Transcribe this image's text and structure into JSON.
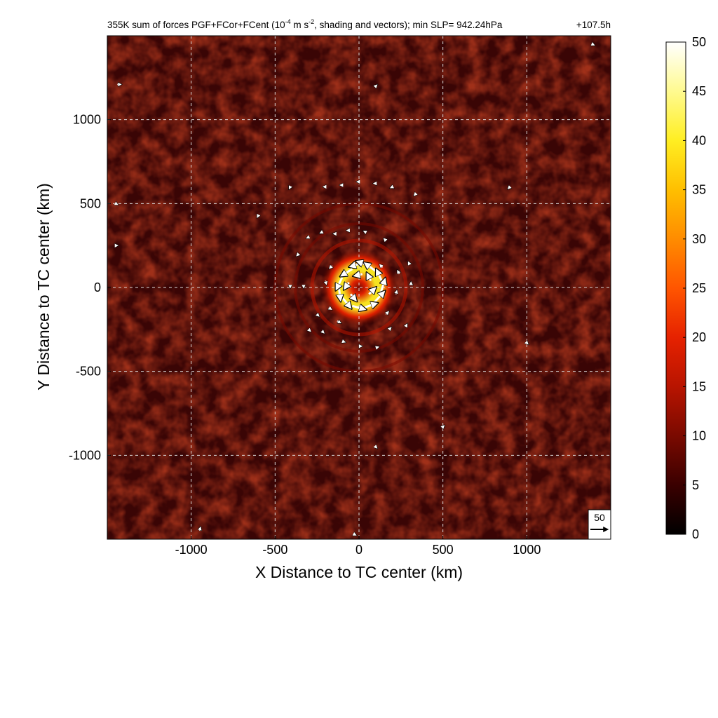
{
  "chart_data": {
    "type": "heatmap",
    "title_parts": {
      "prefix": "355K sum of forces PGF+FCor+FCent (10",
      "exp1": "-4",
      "mid": " m s",
      "exp2": "-2",
      "suffix": ", shading and vectors); min SLP= 942.24hPa",
      "time": "+107.5h"
    },
    "xlabel": "X Distance to TC center (km)",
    "ylabel": "Y Distance to TC center (km)",
    "xlim": [
      -1500,
      1500
    ],
    "ylim": [
      -1500,
      1500
    ],
    "xticks": [
      -1000,
      -500,
      0,
      500,
      1000
    ],
    "yticks": [
      -1000,
      -500,
      0,
      500,
      1000
    ],
    "grid": true,
    "colorbar": {
      "min": 0,
      "max": 50,
      "ticks": [
        0,
        5,
        10,
        15,
        20,
        25,
        30,
        35,
        40,
        45,
        50
      ],
      "colormap": [
        "#000000",
        "#3a0000",
        "#7a0a00",
        "#b81400",
        "#e62200",
        "#ff5500",
        "#ff8c00",
        "#ffbf00",
        "#ffee22",
        "#fffa90",
        "#ffffff"
      ],
      "placement": "right"
    },
    "field": {
      "description_units": "10^-4 m s^-2",
      "max_ring_radius_km": 90,
      "max_ring_value": 40,
      "outer_bands_km": [
        180,
        280,
        380,
        500
      ],
      "background_value": 6
    },
    "reference_vector": {
      "label": "50",
      "value": 50
    },
    "vectors": [
      {
        "x": 0,
        "y": 140,
        "u": -20,
        "v": -6
      },
      {
        "x": 60,
        "y": 130,
        "u": -28,
        "v": 10
      },
      {
        "x": 110,
        "y": 90,
        "u": -30,
        "v": 22
      },
      {
        "x": 140,
        "y": 30,
        "u": -14,
        "v": 30
      },
      {
        "x": 130,
        "y": -30,
        "u": 10,
        "v": 32
      },
      {
        "x": 90,
        "y": -90,
        "u": 24,
        "v": 26
      },
      {
        "x": 30,
        "y": -120,
        "u": 30,
        "v": 10
      },
      {
        "x": -40,
        "y": -110,
        "u": 30,
        "v": -8
      },
      {
        "x": -100,
        "y": -60,
        "u": 20,
        "v": -24
      },
      {
        "x": -120,
        "y": 0,
        "u": 4,
        "v": -30
      },
      {
        "x": -100,
        "y": 60,
        "u": -14,
        "v": -28
      },
      {
        "x": -40,
        "y": 110,
        "u": -26,
        "v": -16
      },
      {
        "x": 20,
        "y": 80,
        "u": -18,
        "v": -4
      },
      {
        "x": 70,
        "y": 40,
        "u": -8,
        "v": 16
      },
      {
        "x": 60,
        "y": -40,
        "u": 14,
        "v": 14
      },
      {
        "x": -50,
        "y": -40,
        "u": 12,
        "v": -14
      },
      {
        "x": -60,
        "y": 30,
        "u": -10,
        "v": -14
      },
      {
        "x": 140,
        "y": 120,
        "u": -6,
        "v": 6
      },
      {
        "x": -160,
        "y": 130,
        "u": -6,
        "v": -6
      },
      {
        "x": -200,
        "y": 40,
        "u": 2,
        "v": -8
      },
      {
        "x": -180,
        "y": -120,
        "u": 6,
        "v": -4
      },
      {
        "x": -130,
        "y": -200,
        "u": 8,
        "v": -4
      },
      {
        "x": 160,
        "y": -160,
        "u": 6,
        "v": 6
      },
      {
        "x": 220,
        "y": -40,
        "u": 2,
        "v": 8
      },
      {
        "x": 240,
        "y": 80,
        "u": -4,
        "v": 8
      },
      {
        "x": -250,
        "y": -160,
        "u": 4,
        "v": -4
      },
      {
        "x": -300,
        "y": -250,
        "u": 4,
        "v": -4
      },
      {
        "x": -220,
        "y": -260,
        "u": 4,
        "v": -4
      },
      {
        "x": -100,
        "y": -320,
        "u": 6,
        "v": -2
      },
      {
        "x": 0,
        "y": -350,
        "u": 6,
        "v": 0
      },
      {
        "x": 100,
        "y": -360,
        "u": 6,
        "v": 2
      },
      {
        "x": 180,
        "y": -250,
        "u": 4,
        "v": 4
      },
      {
        "x": 280,
        "y": -230,
        "u": 2,
        "v": 4
      },
      {
        "x": -330,
        "y": 10,
        "u": 0,
        "v": -4
      },
      {
        "x": -410,
        "y": 10,
        "u": 0,
        "v": -4
      },
      {
        "x": -360,
        "y": 200,
        "u": -4,
        "v": -4
      },
      {
        "x": -300,
        "y": 300,
        "u": -4,
        "v": -2
      },
      {
        "x": -220,
        "y": 330,
        "u": -4,
        "v": -2
      },
      {
        "x": -140,
        "y": 320,
        "u": -4,
        "v": 0
      },
      {
        "x": -60,
        "y": 340,
        "u": -4,
        "v": 0
      },
      {
        "x": 40,
        "y": 330,
        "u": -4,
        "v": 2
      },
      {
        "x": 160,
        "y": 280,
        "u": -4,
        "v": 4
      },
      {
        "x": 300,
        "y": 140,
        "u": -2,
        "v": 4
      },
      {
        "x": 310,
        "y": 20,
        "u": 0,
        "v": 4
      },
      {
        "x": -200,
        "y": 600,
        "u": -4,
        "v": 0
      },
      {
        "x": -100,
        "y": 610,
        "u": -4,
        "v": 0
      },
      {
        "x": 0,
        "y": 630,
        "u": -4,
        "v": 0
      },
      {
        "x": 100,
        "y": 620,
        "u": -4,
        "v": 0
      },
      {
        "x": 200,
        "y": 600,
        "u": -4,
        "v": -2
      },
      {
        "x": 340,
        "y": 560,
        "u": -4,
        "v": -4
      },
      {
        "x": -410,
        "y": 600,
        "u": -2,
        "v": -4
      },
      {
        "x": -600,
        "y": 430,
        "u": -2,
        "v": -4
      },
      {
        "x": 900,
        "y": 600,
        "u": -4,
        "v": -4
      },
      {
        "x": -1440,
        "y": 1210,
        "u": 8,
        "v": 0
      },
      {
        "x": -1450,
        "y": 500,
        "u": 4,
        "v": -2
      },
      {
        "x": -1450,
        "y": 250,
        "u": 4,
        "v": 0
      },
      {
        "x": -950,
        "y": -1450,
        "u": 2,
        "v": 8
      },
      {
        "x": -30,
        "y": -1470,
        "u": 4,
        "v": -2
      },
      {
        "x": 1390,
        "y": 1450,
        "u": 4,
        "v": -2
      },
      {
        "x": 100,
        "y": 1200,
        "u": 2,
        "v": 2
      },
      {
        "x": 500,
        "y": -830,
        "u": 2,
        "v": 2
      },
      {
        "x": 100,
        "y": -950,
        "u": 2,
        "v": -2
      },
      {
        "x": 1000,
        "y": -330,
        "u": 2,
        "v": -2
      }
    ]
  }
}
